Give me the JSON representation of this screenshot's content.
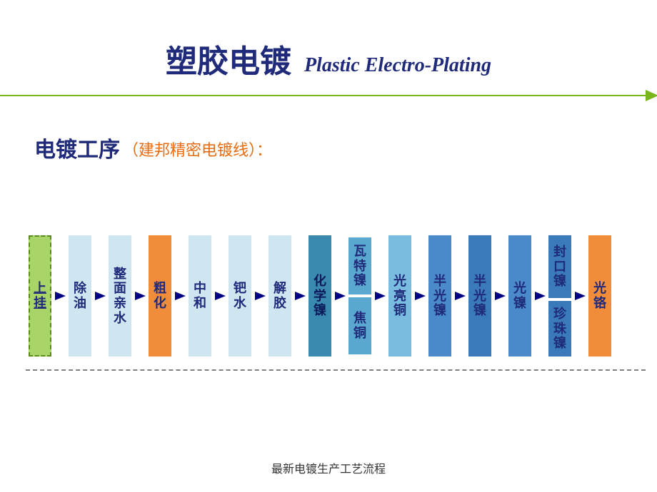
{
  "title": {
    "cn": "塑胶电镀",
    "en": "Plastic Electro-Plating",
    "cn_fontsize": 44,
    "en_fontsize": 28,
    "color": "#1f2a7a"
  },
  "divider": {
    "color": "#7ab51d"
  },
  "section": {
    "title": "电镀工序",
    "title_fontsize": 30,
    "sub": "（建邦精密电镀线）：",
    "sub_fontsize": 22,
    "sub_color": "#e96b10"
  },
  "flow": {
    "step_width": 32,
    "step_height_tall": 170,
    "label_fontsize": 18,
    "arrow_width": 15,
    "arrow_color": "#000080",
    "steps": [
      {
        "labels": [
          [
            "上",
            "挂"
          ]
        ],
        "bg": "#a8d468",
        "border": "2px dashed #5a8a1d",
        "text_color": "#1f2a7a",
        "underline": true
      },
      {
        "labels": [
          [
            "除",
            "油"
          ]
        ],
        "bg": "#cfe6f0"
      },
      {
        "labels": [
          [
            "整",
            "面",
            "亲",
            "水"
          ]
        ],
        "bg": "#cfe6f0"
      },
      {
        "labels": [
          [
            "粗",
            "化"
          ]
        ],
        "bg": "#f08c3a",
        "text_color": "#1f2a7a"
      },
      {
        "labels": [
          [
            "中",
            "和"
          ]
        ],
        "bg": "#cfe6f0"
      },
      {
        "labels": [
          [
            "钯",
            "水"
          ]
        ],
        "bg": "#cfe6f0"
      },
      {
        "labels": [
          [
            "解",
            "胶"
          ]
        ],
        "bg": "#cfe6f0"
      },
      {
        "labels": [
          [
            "化",
            "学",
            "镍"
          ]
        ],
        "bg": "#3a8ab0",
        "text_color": "#0a1a5a"
      },
      {
        "labels": [
          [
            "瓦",
            "特",
            "镍"
          ],
          [
            "焦",
            "铜"
          ]
        ],
        "bg": "#5aa8cf",
        "split": true,
        "heights": [
          80,
          80
        ]
      },
      {
        "labels": [
          [
            "光",
            "亮",
            "铜"
          ]
        ],
        "bg": "#7abce0"
      },
      {
        "labels": [
          [
            "半",
            "光",
            "镍"
          ]
        ],
        "bg": "#4a8ac8"
      },
      {
        "labels": [
          [
            "半",
            "光",
            "镍"
          ]
        ],
        "bg": "#3a7ab8"
      },
      {
        "labels": [
          [
            "光",
            "镍"
          ]
        ],
        "bg": "#4a8ac8"
      },
      {
        "labels": [
          [
            "封",
            "口",
            "镍"
          ],
          [
            "珍",
            "珠",
            "镍"
          ]
        ],
        "bg": "#3a7ab8",
        "split": true,
        "heights": [
          88,
          78
        ]
      },
      {
        "labels": [
          [
            "光",
            "铬"
          ]
        ],
        "bg": "#f08c3a"
      }
    ]
  },
  "footer": {
    "text": "最新电镀生产工艺流程",
    "fontsize": 16
  }
}
